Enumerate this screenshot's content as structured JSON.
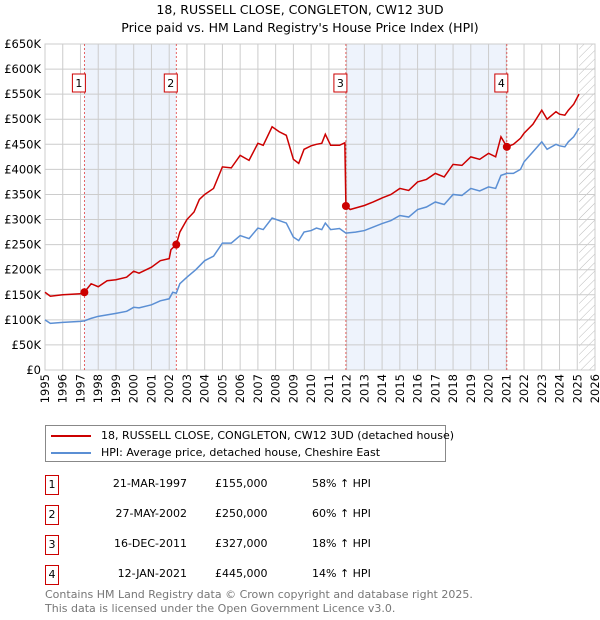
{
  "chart_data": {
    "type": "line",
    "title": "18, RUSSELL CLOSE, CONGLETON, CW12 3UD",
    "subtitle": "Price paid vs. HM Land Registry's House Price Index (HPI)",
    "xlim": [
      1995,
      2026
    ],
    "ylim": [
      0,
      650000
    ],
    "x_ticks": [
      "1995",
      "1996",
      "1997",
      "1998",
      "1999",
      "2000",
      "2001",
      "2002",
      "2003",
      "2004",
      "2005",
      "2006",
      "2007",
      "2008",
      "2009",
      "2010",
      "2011",
      "2012",
      "2013",
      "2014",
      "2015",
      "2016",
      "2017",
      "2018",
      "2019",
      "2020",
      "2021",
      "2022",
      "2023",
      "2024",
      "2025",
      "2026"
    ],
    "y_ticks": [
      "£0",
      "£50K",
      "£100K",
      "£150K",
      "£200K",
      "£250K",
      "£300K",
      "£350K",
      "£400K",
      "£450K",
      "£500K",
      "£550K",
      "£600K",
      "£650K"
    ],
    "grid": true,
    "series": [
      {
        "name": "18, RUSSELL CLOSE, CONGLETON, CW12 3UD (detached house)",
        "color": "#cc0000",
        "points": [
          [
            1995,
            155
          ],
          [
            1995.3,
            147
          ],
          [
            1996,
            150
          ],
          [
            1997,
            152
          ],
          [
            1997.22,
            155
          ],
          [
            1997.6,
            172
          ],
          [
            1998,
            166
          ],
          [
            1998.5,
            178
          ],
          [
            1999,
            180
          ],
          [
            1999.6,
            185
          ],
          [
            2000,
            197
          ],
          [
            2000.3,
            193
          ],
          [
            2001,
            205
          ],
          [
            2001.5,
            218
          ],
          [
            2002,
            222
          ],
          [
            2002.1,
            240
          ],
          [
            2002.4,
            250
          ],
          [
            2002.6,
            275
          ],
          [
            2003,
            300
          ],
          [
            2003.4,
            315
          ],
          [
            2003.7,
            340
          ],
          [
            2004,
            350
          ],
          [
            2004.5,
            362
          ],
          [
            2005,
            405
          ],
          [
            2005.5,
            403
          ],
          [
            2006,
            428
          ],
          [
            2006.5,
            418
          ],
          [
            2007,
            452
          ],
          [
            2007.3,
            448
          ],
          [
            2007.8,
            485
          ],
          [
            2008.2,
            475
          ],
          [
            2008.6,
            468
          ],
          [
            2009,
            420
          ],
          [
            2009.3,
            412
          ],
          [
            2009.6,
            440
          ],
          [
            2010,
            447
          ],
          [
            2010.3,
            450
          ],
          [
            2010.6,
            452
          ],
          [
            2010.8,
            470
          ],
          [
            2011.1,
            448
          ],
          [
            2011.6,
            448
          ],
          [
            2011.9,
            453
          ],
          [
            2011.96,
            327
          ],
          [
            2012.2,
            320
          ],
          [
            2012.5,
            323
          ],
          [
            2013,
            328
          ],
          [
            2013.5,
            335
          ],
          [
            2014,
            343
          ],
          [
            2014.5,
            350
          ],
          [
            2015,
            362
          ],
          [
            2015.5,
            358
          ],
          [
            2016,
            375
          ],
          [
            2016.5,
            380
          ],
          [
            2017,
            392
          ],
          [
            2017.5,
            385
          ],
          [
            2018,
            410
          ],
          [
            2018.5,
            408
          ],
          [
            2019,
            425
          ],
          [
            2019.5,
            420
          ],
          [
            2020,
            432
          ],
          [
            2020.4,
            425
          ],
          [
            2020.7,
            465
          ],
          [
            2021.03,
            445
          ],
          [
            2021.4,
            450
          ],
          [
            2021.8,
            462
          ],
          [
            2022,
            472
          ],
          [
            2022.5,
            490
          ],
          [
            2023,
            518
          ],
          [
            2023.3,
            500
          ],
          [
            2023.8,
            515
          ],
          [
            2024,
            510
          ],
          [
            2024.3,
            508
          ],
          [
            2024.5,
            518
          ],
          [
            2024.8,
            530
          ],
          [
            2025.1,
            550
          ]
        ]
      },
      {
        "name": "HPI: Average price, detached house, Cheshire East",
        "color": "#5b8fd4",
        "points": [
          [
            1995,
            100
          ],
          [
            1995.3,
            93
          ],
          [
            1996,
            95
          ],
          [
            1997,
            97
          ],
          [
            1997.22,
            98
          ],
          [
            1997.6,
            103
          ],
          [
            1998,
            107
          ],
          [
            1998.5,
            110
          ],
          [
            1999,
            113
          ],
          [
            1999.6,
            117
          ],
          [
            2000,
            125
          ],
          [
            2000.3,
            124
          ],
          [
            2001,
            130
          ],
          [
            2001.5,
            138
          ],
          [
            2002,
            142
          ],
          [
            2002.2,
            155
          ],
          [
            2002.4,
            153
          ],
          [
            2002.6,
            172
          ],
          [
            2003,
            185
          ],
          [
            2003.5,
            200
          ],
          [
            2004,
            218
          ],
          [
            2004.5,
            227
          ],
          [
            2005,
            253
          ],
          [
            2005.5,
            253
          ],
          [
            2006,
            268
          ],
          [
            2006.5,
            262
          ],
          [
            2007,
            283
          ],
          [
            2007.3,
            280
          ],
          [
            2007.8,
            303
          ],
          [
            2008.2,
            298
          ],
          [
            2008.6,
            293
          ],
          [
            2009,
            265
          ],
          [
            2009.3,
            258
          ],
          [
            2009.6,
            275
          ],
          [
            2010,
            278
          ],
          [
            2010.3,
            283
          ],
          [
            2010.6,
            280
          ],
          [
            2010.8,
            293
          ],
          [
            2011.1,
            280
          ],
          [
            2011.6,
            282
          ],
          [
            2011.96,
            273
          ],
          [
            2012.5,
            275
          ],
          [
            2013,
            278
          ],
          [
            2013.5,
            285
          ],
          [
            2014,
            292
          ],
          [
            2014.5,
            298
          ],
          [
            2015,
            308
          ],
          [
            2015.5,
            305
          ],
          [
            2016,
            320
          ],
          [
            2016.5,
            325
          ],
          [
            2017,
            335
          ],
          [
            2017.5,
            330
          ],
          [
            2018,
            350
          ],
          [
            2018.5,
            348
          ],
          [
            2019,
            362
          ],
          [
            2019.5,
            357
          ],
          [
            2020,
            365
          ],
          [
            2020.4,
            362
          ],
          [
            2020.7,
            388
          ],
          [
            2021.03,
            392
          ],
          [
            2021.4,
            392
          ],
          [
            2021.8,
            400
          ],
          [
            2022,
            415
          ],
          [
            2022.5,
            435
          ],
          [
            2023,
            455
          ],
          [
            2023.3,
            440
          ],
          [
            2023.8,
            450
          ],
          [
            2024,
            447
          ],
          [
            2024.3,
            445
          ],
          [
            2024.5,
            455
          ],
          [
            2024.8,
            465
          ],
          [
            2025.1,
            482
          ]
        ]
      }
    ],
    "sales": [
      {
        "label": "1",
        "x": 1997.22,
        "price": 155000,
        "date": "21-MAR-1997",
        "price_text": "£155,000",
        "hpi": "58% ↑ HPI"
      },
      {
        "label": "2",
        "x": 2002.4,
        "price": 250000,
        "date": "27-MAY-2002",
        "price_text": "£250,000",
        "hpi": "60% ↑ HPI"
      },
      {
        "label": "3",
        "x": 2011.96,
        "price": 327000,
        "date": "16-DEC-2011",
        "price_text": "£327,000",
        "hpi": "18% ↑ HPI"
      },
      {
        "label": "4",
        "x": 2021.03,
        "price": 445000,
        "date": "12-JAN-2021",
        "price_text": "£445,000",
        "hpi": "14% ↑ HPI"
      }
    ],
    "forecast_from": 2025.1
  },
  "footer": [
    "Contains HM Land Registry data © Crown copyright and database right 2025.",
    "This data is licensed under the Open Government Licence v3.0."
  ]
}
